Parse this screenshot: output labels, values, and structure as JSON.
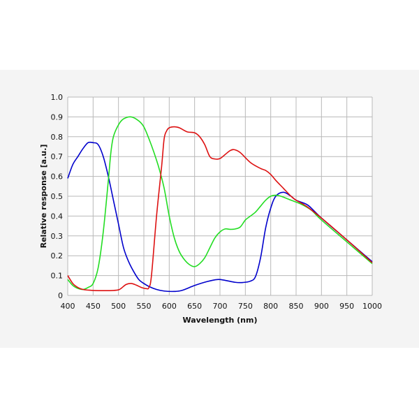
{
  "chart_data": {
    "type": "line",
    "title": "",
    "xlabel": "Wavelength (nm)",
    "ylabel": "Relative response [a.u.]",
    "xlim": [
      400,
      1000
    ],
    "ylim": [
      0,
      1.0
    ],
    "xticks": [
      400,
      450,
      500,
      550,
      600,
      650,
      700,
      750,
      800,
      850,
      900,
      950,
      1000
    ],
    "yticks": [
      0,
      0.1,
      0.2,
      0.3,
      0.4,
      0.5,
      0.6,
      0.7,
      0.8,
      0.9,
      1.0
    ],
    "ytick_labels": [
      "0",
      "0.1",
      "0.2",
      "0.3",
      "0.4",
      "0.5",
      "0.6",
      "0.7",
      "0.8",
      "0.9",
      "1.0"
    ],
    "grid": true,
    "legend": "none",
    "series": [
      {
        "color": "#0000cc",
        "points": [
          [
            400,
            0.59
          ],
          [
            410,
            0.66
          ],
          [
            420,
            0.7
          ],
          [
            430,
            0.74
          ],
          [
            440,
            0.77
          ],
          [
            450,
            0.77
          ],
          [
            460,
            0.76
          ],
          [
            470,
            0.7
          ],
          [
            480,
            0.6
          ],
          [
            490,
            0.48
          ],
          [
            500,
            0.36
          ],
          [
            510,
            0.24
          ],
          [
            520,
            0.17
          ],
          [
            530,
            0.12
          ],
          [
            540,
            0.08
          ],
          [
            550,
            0.06
          ],
          [
            560,
            0.045
          ],
          [
            575,
            0.03
          ],
          [
            590,
            0.022
          ],
          [
            610,
            0.02
          ],
          [
            625,
            0.025
          ],
          [
            650,
            0.05
          ],
          [
            675,
            0.07
          ],
          [
            695,
            0.08
          ],
          [
            710,
            0.076
          ],
          [
            730,
            0.066
          ],
          [
            745,
            0.065
          ],
          [
            760,
            0.072
          ],
          [
            770,
            0.095
          ],
          [
            780,
            0.19
          ],
          [
            790,
            0.34
          ],
          [
            800,
            0.44
          ],
          [
            810,
            0.5
          ],
          [
            825,
            0.52
          ],
          [
            840,
            0.5
          ],
          [
            850,
            0.48
          ],
          [
            870,
            0.46
          ],
          [
            880,
            0.44
          ],
          [
            900,
            0.39
          ],
          [
            950,
            0.28
          ],
          [
            1000,
            0.17
          ]
        ]
      },
      {
        "color": "#22dd22",
        "points": [
          [
            400,
            0.08
          ],
          [
            410,
            0.05
          ],
          [
            420,
            0.035
          ],
          [
            430,
            0.03
          ],
          [
            440,
            0.04
          ],
          [
            450,
            0.06
          ],
          [
            460,
            0.14
          ],
          [
            470,
            0.32
          ],
          [
            480,
            0.58
          ],
          [
            485,
            0.72
          ],
          [
            490,
            0.8
          ],
          [
            500,
            0.86
          ],
          [
            510,
            0.89
          ],
          [
            525,
            0.9
          ],
          [
            540,
            0.88
          ],
          [
            550,
            0.85
          ],
          [
            560,
            0.79
          ],
          [
            570,
            0.72
          ],
          [
            580,
            0.64
          ],
          [
            590,
            0.54
          ],
          [
            600,
            0.4
          ],
          [
            610,
            0.29
          ],
          [
            620,
            0.22
          ],
          [
            630,
            0.18
          ],
          [
            640,
            0.155
          ],
          [
            650,
            0.145
          ],
          [
            660,
            0.16
          ],
          [
            670,
            0.19
          ],
          [
            680,
            0.24
          ],
          [
            690,
            0.29
          ],
          [
            700,
            0.32
          ],
          [
            710,
            0.335
          ],
          [
            720,
            0.333
          ],
          [
            730,
            0.335
          ],
          [
            740,
            0.345
          ],
          [
            750,
            0.38
          ],
          [
            760,
            0.4
          ],
          [
            770,
            0.42
          ],
          [
            780,
            0.45
          ],
          [
            790,
            0.48
          ],
          [
            800,
            0.5
          ],
          [
            810,
            0.505
          ],
          [
            820,
            0.5
          ],
          [
            840,
            0.48
          ],
          [
            860,
            0.46
          ],
          [
            880,
            0.43
          ],
          [
            900,
            0.38
          ],
          [
            950,
            0.27
          ],
          [
            1000,
            0.16
          ]
        ]
      },
      {
        "color": "#dd1111",
        "points": [
          [
            400,
            0.1
          ],
          [
            410,
            0.06
          ],
          [
            420,
            0.04
          ],
          [
            430,
            0.03
          ],
          [
            450,
            0.025
          ],
          [
            475,
            0.024
          ],
          [
            490,
            0.025
          ],
          [
            500,
            0.028
          ],
          [
            505,
            0.035
          ],
          [
            515,
            0.055
          ],
          [
            525,
            0.06
          ],
          [
            535,
            0.052
          ],
          [
            545,
            0.04
          ],
          [
            555,
            0.034
          ],
          [
            560,
            0.04
          ],
          [
            565,
            0.1
          ],
          [
            575,
            0.4
          ],
          [
            585,
            0.65
          ],
          [
            590,
            0.79
          ],
          [
            595,
            0.83
          ],
          [
            600,
            0.845
          ],
          [
            610,
            0.85
          ],
          [
            620,
            0.845
          ],
          [
            635,
            0.825
          ],
          [
            650,
            0.82
          ],
          [
            660,
            0.8
          ],
          [
            670,
            0.76
          ],
          [
            680,
            0.7
          ],
          [
            690,
            0.688
          ],
          [
            700,
            0.69
          ],
          [
            710,
            0.71
          ],
          [
            720,
            0.73
          ],
          [
            728,
            0.735
          ],
          [
            740,
            0.72
          ],
          [
            760,
            0.67
          ],
          [
            780,
            0.64
          ],
          [
            790,
            0.63
          ],
          [
            800,
            0.61
          ],
          [
            810,
            0.58
          ],
          [
            825,
            0.54
          ],
          [
            840,
            0.5
          ],
          [
            850,
            0.48
          ],
          [
            870,
            0.45
          ],
          [
            900,
            0.39
          ],
          [
            950,
            0.28
          ],
          [
            1000,
            0.165
          ]
        ]
      }
    ]
  }
}
